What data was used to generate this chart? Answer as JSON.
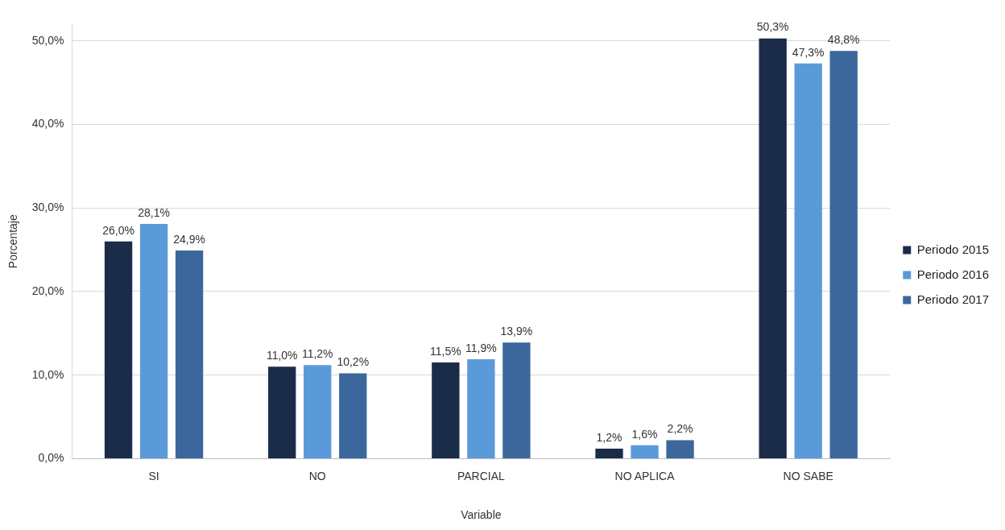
{
  "chart_data": {
    "type": "bar",
    "xlabel": "Variable",
    "ylabel": "Porcentaje",
    "categories": [
      "SI",
      "NO",
      "PARCIAL",
      "NO APLICA",
      "NO SABE"
    ],
    "series": [
      {
        "name": "Periodo 2015",
        "color": "#1b2c4b",
        "values": [
          26.0,
          11.0,
          11.5,
          1.2,
          50.3
        ],
        "value_labels": [
          "26,0%",
          "11,0%",
          "11,5%",
          "1,2%",
          "50,3%"
        ]
      },
      {
        "name": "Periodo 2016",
        "color": "#5b9ad8",
        "values": [
          28.1,
          11.2,
          11.9,
          1.6,
          47.3
        ],
        "value_labels": [
          "28,1%",
          "11,2%",
          "11,9%",
          "1,6%",
          "47,3%"
        ]
      },
      {
        "name": "Periodo 2017",
        "color": "#3b679c",
        "values": [
          24.9,
          10.2,
          13.9,
          2.2,
          48.8
        ],
        "value_labels": [
          "24,9%",
          "10,2%",
          "13,9%",
          "2,2%",
          "48,8%"
        ]
      }
    ],
    "ylim": [
      0,
      52
    ],
    "yticks": [
      {
        "value": 0,
        "label": "0,0%"
      },
      {
        "value": 10,
        "label": "10,0%"
      },
      {
        "value": 20,
        "label": "20,0%"
      },
      {
        "value": 30,
        "label": "30,0%"
      },
      {
        "value": 40,
        "label": "40,0%"
      },
      {
        "value": 50,
        "label": "50,0%"
      }
    ],
    "grid": "y",
    "legend": "right"
  }
}
